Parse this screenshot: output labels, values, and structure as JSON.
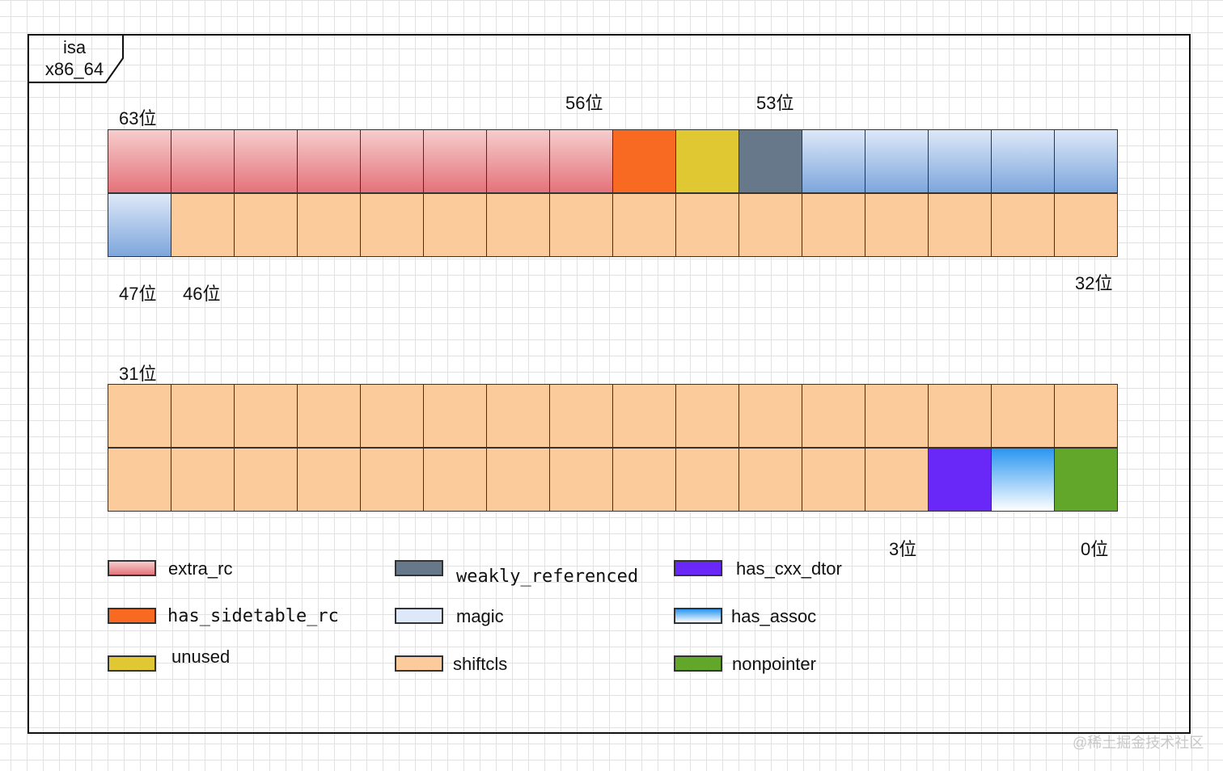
{
  "tag": {
    "line1": "isa",
    "line2": "x86_64"
  },
  "rows": [
    [
      "extra_rc",
      "extra_rc",
      "extra_rc",
      "extra_rc",
      "extra_rc",
      "extra_rc",
      "extra_rc",
      "extra_rc",
      "has_sidetable_rc",
      "unused",
      "weakly_referenced",
      "magic",
      "magic",
      "magic",
      "magic",
      "magic"
    ],
    [
      "magic",
      "shiftcls",
      "shiftcls",
      "shiftcls",
      "shiftcls",
      "shiftcls",
      "shiftcls",
      "shiftcls",
      "shiftcls",
      "shiftcls",
      "shiftcls",
      "shiftcls",
      "shiftcls",
      "shiftcls",
      "shiftcls",
      "shiftcls"
    ],
    [
      "shiftcls",
      "shiftcls",
      "shiftcls",
      "shiftcls",
      "shiftcls",
      "shiftcls",
      "shiftcls",
      "shiftcls",
      "shiftcls",
      "shiftcls",
      "shiftcls",
      "shiftcls",
      "shiftcls",
      "shiftcls",
      "shiftcls",
      "shiftcls"
    ],
    [
      "shiftcls",
      "shiftcls",
      "shiftcls",
      "shiftcls",
      "shiftcls",
      "shiftcls",
      "shiftcls",
      "shiftcls",
      "shiftcls",
      "shiftcls",
      "shiftcls",
      "shiftcls",
      "shiftcls",
      "has_cxx_dtor",
      "has_assoc",
      "nonpointer"
    ]
  ],
  "bit_labels": {
    "b63": "63位",
    "b56": "56位",
    "b53": "53位",
    "b47": "47位",
    "b46": "46位",
    "b32": "32位",
    "b31": "31位",
    "b3": "3位",
    "b0": "0位"
  },
  "legend": {
    "extra_rc": "extra_rc",
    "has_sidetable_rc": "has_sidetable_rc",
    "unused": "unused",
    "weakly_referenced": "weakly_referenced",
    "magic": "magic",
    "shiftcls": "shiftcls",
    "has_cxx_dtor": "has_cxx_dtor",
    "has_assoc": "has_assoc",
    "nonpointer": "nonpointer"
  },
  "watermark": "@稀土掘金技术社区"
}
